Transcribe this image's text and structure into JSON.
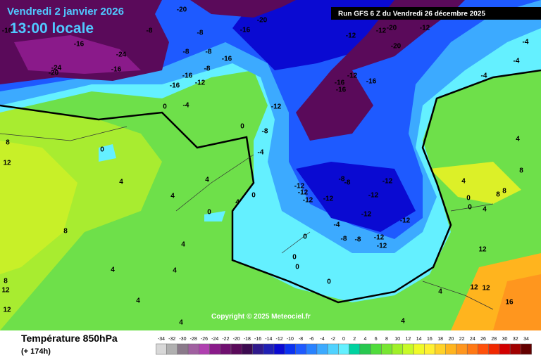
{
  "header": {
    "date": "Vendredi 2 janvier 2026",
    "time": "13:00 locale",
    "run": "Run GFS 6 Z du Vendredi 26 décembre 2025"
  },
  "copyright": "Copyright © 2025 Meteociel.fr",
  "footer": {
    "parameter": "Température 850hPa",
    "lead": "(+ 174h)"
  },
  "scale": {
    "ticks": [
      -34,
      -32,
      -30,
      -28,
      -26,
      -24,
      -22,
      -20,
      -18,
      -16,
      -14,
      -12,
      -10,
      -8,
      -6,
      -4,
      -2,
      0,
      2,
      4,
      6,
      8,
      10,
      12,
      14,
      16,
      18,
      20,
      22,
      24,
      26,
      28,
      30,
      32,
      34
    ],
    "colors": [
      "#d8d8d8",
      "#b0b0b0",
      "#8a7a8a",
      "#a060a0",
      "#b040b0",
      "#8a1a8a",
      "#701070",
      "#5a0a5a",
      "#3c0a50",
      "#301a8c",
      "#2020b4",
      "#0a0ad2",
      "#0a32f0",
      "#1e5aff",
      "#2882ff",
      "#3caaff",
      "#50d2ff",
      "#64f0ff",
      "#00d2a0",
      "#28c850",
      "#50dc3c",
      "#78e632",
      "#a0f028",
      "#c8fa28",
      "#f0fa28",
      "#fff032",
      "#ffd228",
      "#ffb41e",
      "#ff961e",
      "#ff7814",
      "#ff500a",
      "#f02800",
      "#d20000",
      "#a00000",
      "#640000"
    ]
  },
  "map_labels": [
    -16,
    -16,
    -24,
    -24,
    -20,
    -16,
    -8,
    -20,
    -16,
    -20,
    -8,
    -8,
    -8,
    -16,
    -12,
    -12,
    -20,
    -12,
    -20,
    -8,
    -16,
    -12,
    -16,
    -12,
    -16,
    -16,
    -16,
    -4,
    -4,
    -4,
    -12,
    -8,
    -4,
    0,
    0,
    -4,
    0,
    8,
    12,
    4,
    4,
    4,
    0,
    4,
    0,
    -12,
    -12,
    -12,
    -12,
    -8,
    -8,
    -12,
    -12,
    -12,
    -12,
    -12,
    -12,
    -8,
    -8,
    -4,
    0,
    0,
    0,
    0,
    4,
    4,
    4,
    8,
    8,
    12,
    12,
    4,
    4,
    4,
    4,
    0,
    0,
    4,
    8,
    8,
    12,
    12,
    12,
    16,
    4,
    4,
    8
  ]
}
